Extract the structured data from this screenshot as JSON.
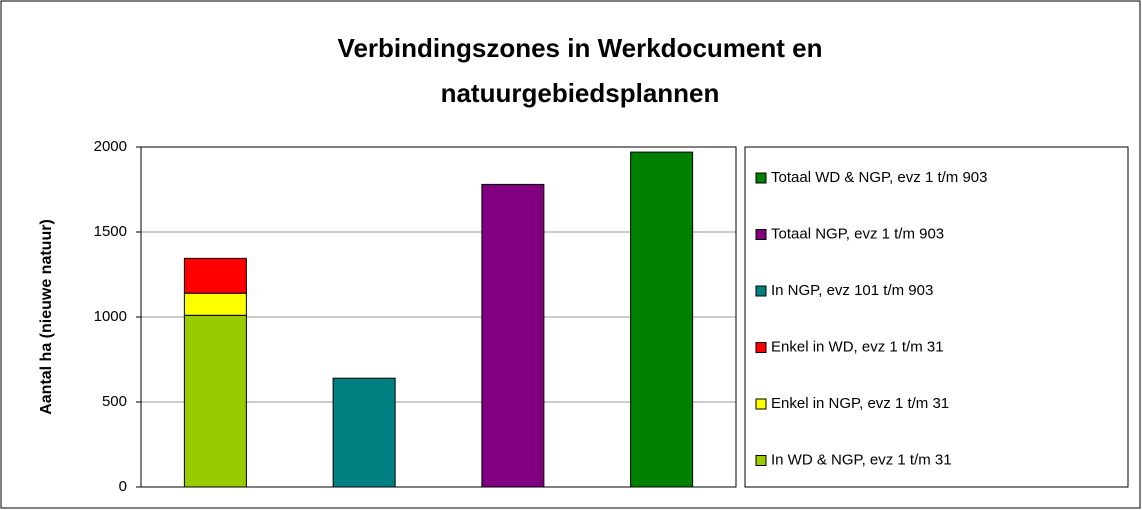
{
  "chart_data": {
    "type": "stacked_bar",
    "title": [
      "Verbindingszones in Werkdocument en",
      "natuurgebiedsplannen"
    ],
    "y_label": "Aantal ha (nieuwe natuur)",
    "categories": [
      null,
      null,
      null,
      null
    ],
    "series": [
      {
        "name": "In WD & NGP, evz 1 t/m 31",
        "color": "#99cc00",
        "values": [
          1010,
          null,
          null,
          null
        ]
      },
      {
        "name": "Enkel in NGP, evz 1 t/m 31",
        "color": "#ffff00",
        "values": [
          130,
          null,
          null,
          null
        ]
      },
      {
        "name": "Enkel in WD, evz 1 t/m 31",
        "color": "#ff0000",
        "values": [
          205,
          null,
          null,
          null
        ]
      },
      {
        "name": "In NGP, evz 101 t/m 903",
        "color": "#008080",
        "values": [
          null,
          640,
          null,
          null
        ]
      },
      {
        "name": "Totaal NGP, evz 1 t/m 903",
        "color": "#800080",
        "values": [
          null,
          null,
          1780,
          null
        ]
      },
      {
        "name": "Totaal WD & NGP, evz 1 t/m 903",
        "color": "#008000",
        "values": [
          null,
          null,
          null,
          1970
        ]
      }
    ],
    "ylim": [
      0,
      2000
    ],
    "yticks": [
      0,
      500,
      1000,
      1500,
      2000
    ],
    "grid": true
  }
}
